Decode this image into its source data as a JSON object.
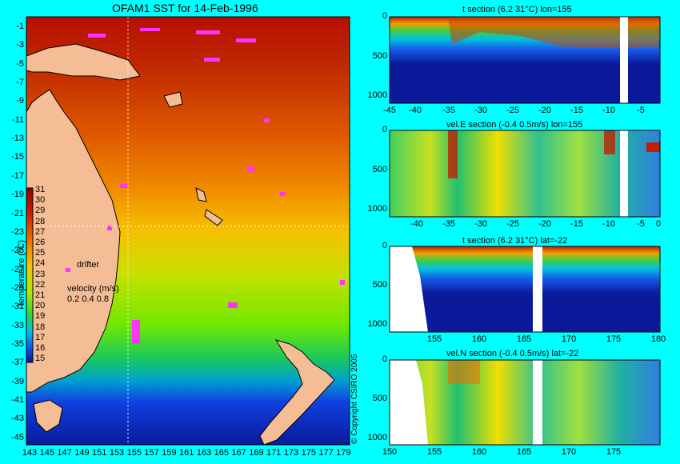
{
  "map": {
    "title": "OFAM1 SST for 14-Feb-1996",
    "y_ticks": [
      "-1",
      "-3",
      "-5",
      "-7",
      "-9",
      "-11",
      "-13",
      "-15",
      "-17",
      "-19",
      "-21",
      "-23",
      "-25",
      "-27",
      "-29",
      "-31",
      "-33",
      "-35",
      "-37",
      "-39",
      "-41",
      "-43",
      "-45"
    ],
    "x_ticks": [
      "143",
      "145",
      "147",
      "149",
      "151",
      "153",
      "155",
      "157",
      "159",
      "161",
      "163",
      "165",
      "167",
      "169",
      "171",
      "173",
      "175",
      "177",
      "179"
    ],
    "colorbar_label": "temperature (°C)",
    "colorbar_ticks": [
      "31",
      "30",
      "29",
      "28",
      "27",
      "26",
      "25",
      "24",
      "23",
      "22",
      "21",
      "20",
      "19",
      "18",
      "17",
      "16",
      "15"
    ],
    "drifter_label": "drifter",
    "velocity_label": "velocity (m/s)",
    "velocity_values": "0.2 0.4 0.8",
    "copyright": "© Copyright CSIRO 2005"
  },
  "colors": {
    "background": "#00ffff",
    "land": "#f5bd95",
    "drifter": "#ff33ff",
    "warm": "#b81000",
    "cold": "#0a1a9a"
  },
  "sections": [
    {
      "title": "t section (6.2      31°C) lon=155",
      "x_ticks": [
        "-45",
        "-40",
        "-35",
        "-30",
        "-25",
        "-20",
        "-15",
        "-10",
        "-5"
      ],
      "y_ticks": [
        "0",
        "500",
        "1000"
      ]
    },
    {
      "title": "vel.E section (-0.4      0.5m/s) lon=155",
      "x_ticks": [
        "-40",
        "-35",
        "-30",
        "-25",
        "-20",
        "-15",
        "-10",
        "-5",
        "0"
      ],
      "y_ticks": [
        "0",
        "500",
        "1000"
      ]
    },
    {
      "title": "t section (6.2      31°C) lat=-22",
      "x_ticks": [
        "155",
        "160",
        "165",
        "170",
        "175",
        "180"
      ],
      "y_ticks": [
        "0",
        "500",
        "1000"
      ]
    },
    {
      "title": "vel.N section (-0.4      0.5m/s) lat=-22",
      "x_ticks": [
        "150",
        "155",
        "160",
        "165",
        "170",
        "175"
      ],
      "y_ticks": [
        "0",
        "500",
        "1000"
      ]
    }
  ],
  "chart_data": [
    {
      "type": "heatmap",
      "title": "OFAM1 SST for 14-Feb-1996",
      "xlim": [
        143,
        180
      ],
      "ylim": [
        -45,
        0
      ],
      "colorbar_range": [
        15,
        31
      ],
      "colorbar_label": "temperature (°C)"
    },
    {
      "type": "heatmap",
      "title": "t section (6.2      31°C) lon=155",
      "xlim": [
        -45,
        0
      ],
      "ylim": [
        1000,
        0
      ]
    },
    {
      "type": "heatmap",
      "title": "vel.E section (-0.4      0.5m/s) lon=155",
      "xlim": [
        -45,
        0
      ],
      "ylim": [
        1000,
        0
      ]
    },
    {
      "type": "heatmap",
      "title": "t section (6.2      31°C) lat=-22",
      "xlim": [
        150,
        180
      ],
      "ylim": [
        1000,
        0
      ]
    },
    {
      "type": "heatmap",
      "title": "vel.N section (-0.4      0.5m/s) lat=-22",
      "xlim": [
        150,
        180
      ],
      "ylim": [
        1000,
        0
      ]
    }
  ]
}
